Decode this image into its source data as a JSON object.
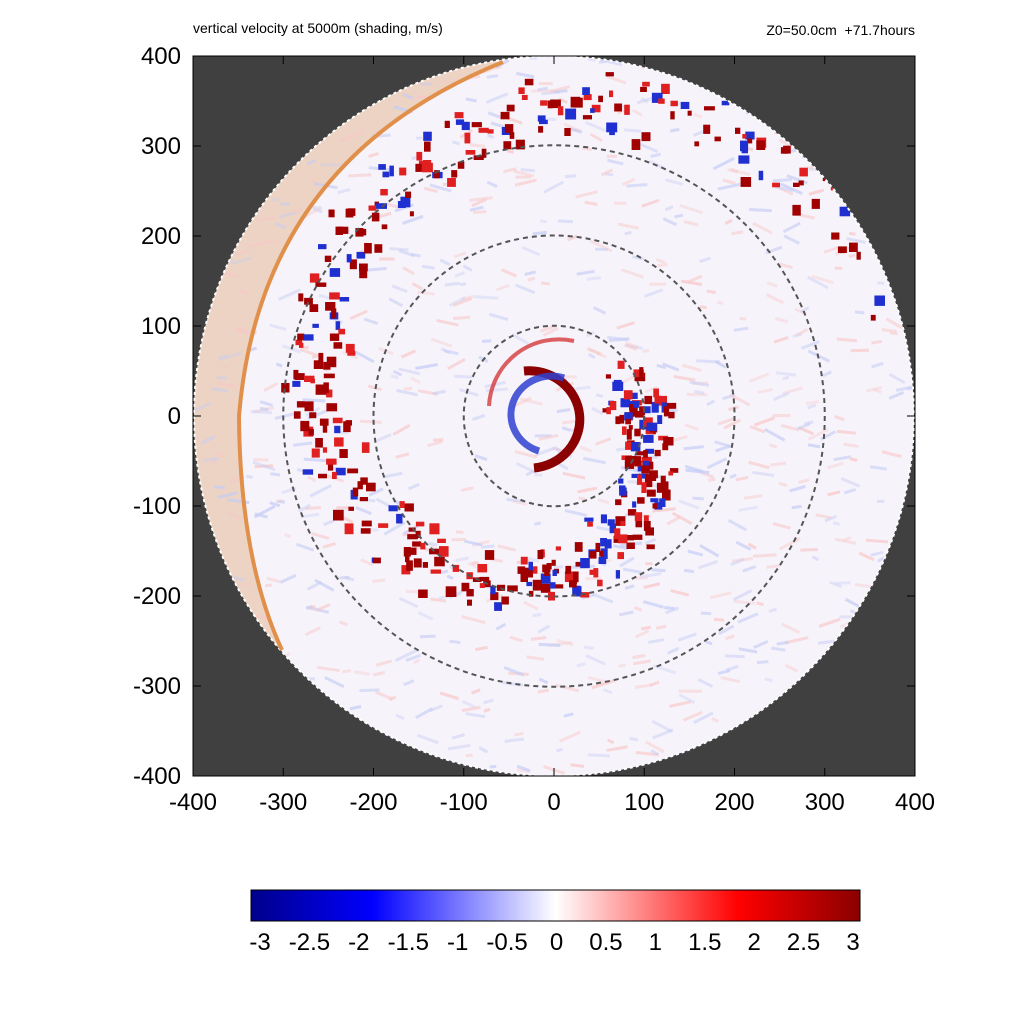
{
  "title_left": "vertical velocity at 5000m (shading, m/s)",
  "title_right": "Z0=50.0cm  +71.7hours",
  "chart_data": {
    "type": "heatmap",
    "title": "vertical velocity at 5000m (shading, m/s)",
    "annotation": "Z0=50.0cm  +71.7hours",
    "xlim": [
      -400,
      400
    ],
    "ylim": [
      -400,
      400
    ],
    "x_ticks": [
      "-400",
      "-300",
      "-200",
      "-100",
      "0",
      "100",
      "200",
      "300",
      "400"
    ],
    "y_ticks": [
      "400",
      "300",
      "200",
      "100",
      "0",
      "-100",
      "-200",
      "-300",
      "-400"
    ],
    "domain_radius": 400,
    "reference_circles_radii": [
      100,
      200,
      300
    ],
    "colorbar": {
      "min": -3,
      "max": 3,
      "ticks": [
        "-3",
        "-2.5",
        "-2",
        "-1.5",
        "-1",
        "-0.5",
        "0",
        "0.5",
        "1",
        "1.5",
        "2",
        "2.5",
        "3"
      ],
      "colors": [
        "#00008b",
        "#0000ff",
        "#ffffff",
        "#ff0000",
        "#8b0000"
      ]
    },
    "background_color": "#404040",
    "shaded_sector_color": "#e8c8b0",
    "sector_edge_color": "#e0904a"
  }
}
